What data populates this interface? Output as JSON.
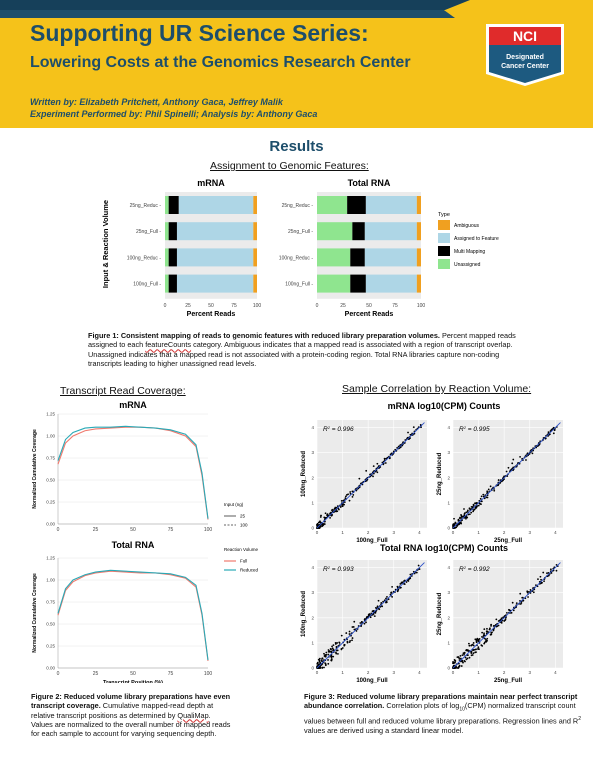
{
  "header": {
    "title_line1": "Supporting UR Science Series:",
    "title_line2": "Lowering Costs at the Genomics Research Center",
    "written_by": "Written by: Elizabeth Pritchett, Anthony Gaca, Jeffrey Malik",
    "performed_by": "Experiment Performed by: Phil Spinelli; Analysis by: Anthony Gaca",
    "logo_top": "NCI",
    "logo_line1": "Designated",
    "logo_line2": "Cancer Center"
  },
  "colors": {
    "navy": "#1d4e6b",
    "yellow": "#f5c21a",
    "ambiguous": "#f0a020",
    "assigned": "#aed6e6",
    "multi": "#000000",
    "unassigned": "#8fe58f",
    "full": "#f07a6e",
    "reduced": "#2aa9b6",
    "regression": "#2a4fc8"
  },
  "results_heading": "Results",
  "fig1": {
    "section_title": "Assignment to Genomic Features:",
    "y_axis_label": "Input & Reaction Volume",
    "x_axis_label": "Percent Reads",
    "categories": [
      "25ng_Reduc",
      "25ng_Full",
      "100ng_Reduc",
      "100ng_Full"
    ],
    "x_ticks": [
      "0",
      "25",
      "50",
      "75",
      "100"
    ],
    "legend_title": "Type",
    "legend": [
      "Ambiguous",
      "Assigned to Feature",
      "Multi Mapping",
      "Unassigned"
    ],
    "caption_bold": "Figure 1:  Consistent mapping of reads to genomic features with reduced library preparation volumes.",
    "caption_text_a": "Percent mapped reads assigned to each ",
    "caption_squiggle": "featureCounts",
    "caption_text_b": " category. Ambiguous indicates that a mapped read is associated with a region of transcript overlap. Unassigned indicates that a mapped read is not associated with a protein-coding region. Total RNA libraries capture non-coding transcripts leading to higher unassigned read levels."
  },
  "fig2": {
    "section_title": "Transcript Read Coverage:",
    "y_axis_label": "Normalized Cumulative Coverage",
    "x_axis_label": "Transcript Position (%)",
    "y_ticks": [
      "0.00",
      "0.25",
      "0.50",
      "0.75",
      "1.00",
      "1.25"
    ],
    "x_ticks": [
      "0",
      "25",
      "50",
      "75",
      "100"
    ],
    "legend_input_title": "Input (ng)",
    "legend_input": [
      "25",
      "100"
    ],
    "legend_volume_title": "Reaction Volume",
    "legend_volume": [
      "Full",
      "Reduced"
    ],
    "caption_bold": "Figure 2:  Reduced volume library preparations have even transcript coverage.",
    "caption_text_a": " Cumulative mapped-read depth at relative transcript positions as determined by ",
    "caption_squiggle": "QualiMap",
    "caption_text_b": ". Values are normalized to the overall number of mapped reads for each sample to account for varying sequencing depth."
  },
  "fig3": {
    "section_title": "Sample Correlation by Reaction Volume:",
    "mrna_title": "mRNA log10(CPM) Counts",
    "total_title": "Total RNA log10(CPM) Counts",
    "r2_prefix": "R",
    "ticks": [
      "0",
      "1",
      "2",
      "3",
      "4"
    ],
    "caption_bold": "Figure 3: Reduced volume library preparations maintain near perfect transcript abundance correlation.",
    "caption_text_a": " Correlation plots of log",
    "caption_sub": "10",
    "caption_text_b": "(CPM) normalized transcript count values between full and reduced volume library preparations.  Regression lines and R",
    "caption_sup": "2",
    "caption_text_c": " values are derived using a standard linear model."
  },
  "chart_data": [
    {
      "type": "bar",
      "title": "mRNA",
      "xlabel": "Percent Reads",
      "ylabel": "Input & Reaction Volume",
      "categories": [
        "25ng_Reduc",
        "25ng_Full",
        "100ng_Reduc",
        "100ng_Full"
      ],
      "xlim": [
        0,
        100
      ],
      "series": [
        {
          "name": "Unassigned",
          "values": [
            4,
            4,
            4,
            4
          ]
        },
        {
          "name": "Multi Mapping",
          "values": [
            11,
            9,
            9,
            9
          ]
        },
        {
          "name": "Assigned to Feature",
          "values": [
            81,
            83,
            83,
            83
          ]
        },
        {
          "name": "Ambiguous",
          "values": [
            4,
            4,
            4,
            4
          ]
        }
      ]
    },
    {
      "type": "bar",
      "title": "Total RNA",
      "xlabel": "Percent Reads",
      "ylabel": "Input & Reaction Volume",
      "categories": [
        "25ng_Reduc",
        "25ng_Full",
        "100ng_Reduc",
        "100ng_Full"
      ],
      "xlim": [
        0,
        100
      ],
      "series": [
        {
          "name": "Unassigned",
          "values": [
            29,
            34,
            32,
            32
          ]
        },
        {
          "name": "Multi Mapping",
          "values": [
            18,
            12,
            14,
            15
          ]
        },
        {
          "name": "Assigned to Feature",
          "values": [
            49,
            50,
            50,
            49
          ]
        },
        {
          "name": "Ambiguous",
          "values": [
            4,
            4,
            4,
            4
          ]
        }
      ]
    },
    {
      "type": "line",
      "title": "mRNA",
      "xlabel": "Transcript Position (%)",
      "ylabel": "Normalized Cumulative Coverage",
      "xlim": [
        0,
        100
      ],
      "ylim": [
        0,
        1.25
      ],
      "series": [
        {
          "name": "Full",
          "x": [
            0,
            5,
            10,
            18,
            25,
            35,
            45,
            55,
            65,
            75,
            85,
            92,
            96,
            100
          ],
          "y": [
            0.68,
            0.92,
            1.0,
            1.06,
            1.08,
            1.09,
            1.1,
            1.1,
            1.09,
            1.06,
            1.0,
            0.88,
            0.55,
            0.05
          ]
        },
        {
          "name": "Reduced",
          "x": [
            0,
            5,
            10,
            18,
            25,
            35,
            45,
            55,
            65,
            75,
            85,
            92,
            96,
            100
          ],
          "y": [
            0.72,
            0.96,
            1.04,
            1.09,
            1.1,
            1.1,
            1.11,
            1.1,
            1.09,
            1.07,
            1.02,
            0.9,
            0.58,
            0.06
          ]
        }
      ]
    },
    {
      "type": "line",
      "title": "Total RNA",
      "xlabel": "Transcript Position (%)",
      "ylabel": "Normalized Cumulative Coverage",
      "xlim": [
        0,
        100
      ],
      "ylim": [
        0,
        1.25
      ],
      "series": [
        {
          "name": "Full",
          "x": [
            0,
            5,
            10,
            18,
            25,
            35,
            45,
            55,
            65,
            75,
            85,
            92,
            96,
            100
          ],
          "y": [
            0.6,
            0.88,
            0.98,
            1.05,
            1.08,
            1.1,
            1.09,
            1.08,
            1.08,
            1.06,
            1.02,
            0.92,
            0.6,
            0.08
          ]
        },
        {
          "name": "Reduced",
          "x": [
            0,
            5,
            10,
            18,
            25,
            35,
            45,
            55,
            65,
            75,
            85,
            92,
            96,
            100
          ],
          "y": [
            0.62,
            0.9,
            1.0,
            1.06,
            1.09,
            1.11,
            1.1,
            1.09,
            1.08,
            1.07,
            1.03,
            0.94,
            0.62,
            0.09
          ]
        }
      ]
    },
    {
      "type": "scatter",
      "title": "mRNA log10(CPM) Counts",
      "xlabel": "100ng_Full",
      "ylabel": "100ng_Reduced",
      "r2": "0.996",
      "xlim": [
        0,
        4.3
      ],
      "ylim": [
        0,
        4.3
      ]
    },
    {
      "type": "scatter",
      "title": "mRNA log10(CPM) Counts",
      "xlabel": "25ng_Full",
      "ylabel": "25ng_Reduced",
      "r2": "0.995",
      "xlim": [
        0,
        4.3
      ],
      "ylim": [
        0,
        4.3
      ]
    },
    {
      "type": "scatter",
      "title": "Total RNA log10(CPM) Counts",
      "xlabel": "100ng_Full",
      "ylabel": "100ng_Reduced",
      "r2": "0.993",
      "xlim": [
        0,
        4.3
      ],
      "ylim": [
        0,
        4.3
      ]
    },
    {
      "type": "scatter",
      "title": "Total RNA log10(CPM) Counts",
      "xlabel": "25ng_Full",
      "ylabel": "25ng_Reduced",
      "r2": "0.992",
      "xlim": [
        0,
        4.3
      ],
      "ylim": [
        0,
        4.3
      ]
    }
  ]
}
